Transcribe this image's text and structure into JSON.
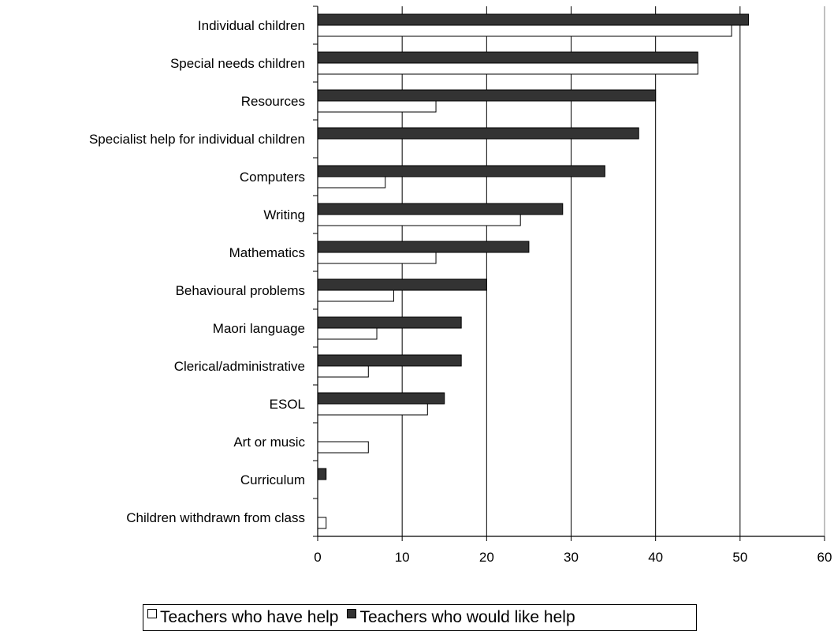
{
  "chart_data": {
    "type": "bar",
    "orientation": "horizontal",
    "title": "",
    "xlabel": "",
    "ylabel": "",
    "xlim": [
      0,
      60
    ],
    "x_ticks": [
      "0",
      "10",
      "20",
      "30",
      "40",
      "50",
      "60"
    ],
    "grid": "vertical",
    "legend_position": "bottom",
    "categories": [
      "Individual children",
      "Special needs children",
      "Resources",
      "Specialist help for individual children",
      "Computers",
      "Writing",
      "Mathematics",
      "Behavioural problems",
      "Maori language",
      "Clerical/administrative",
      "ESOL",
      "Art or music",
      "Curriculum",
      "Children withdrawn from class"
    ],
    "series": [
      {
        "name": "Teachers who have help",
        "color": "#ffffff",
        "values": [
          49,
          45,
          14,
          0,
          8,
          24,
          14,
          9,
          7,
          6,
          13,
          6,
          0,
          1
        ]
      },
      {
        "name": "Teachers who would like help",
        "color": "#333333",
        "values": [
          51,
          45,
          40,
          38,
          34,
          29,
          25,
          20,
          17,
          17,
          15,
          0,
          1,
          0
        ]
      }
    ]
  }
}
